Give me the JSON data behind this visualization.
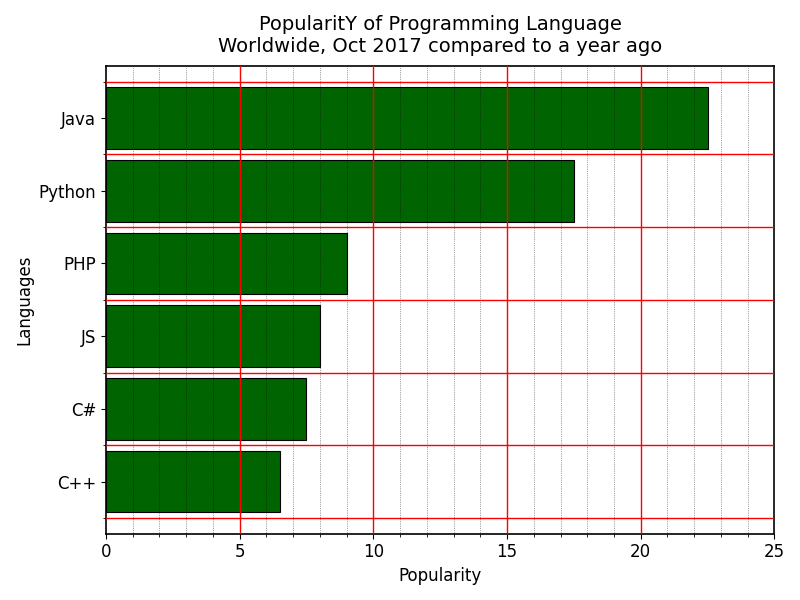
{
  "title": "PopularitY of Programming Language\nWorldwide, Oct 2017 compared to a year ago",
  "xlabel": "Popularity",
  "ylabel": "Languages",
  "languages": [
    "Java",
    "Python",
    "PHP",
    "JS",
    "C#",
    "C++"
  ],
  "values": [
    22.5,
    17.5,
    9.0,
    8.0,
    7.5,
    6.5
  ],
  "bar_color": "#006400",
  "bar_edgecolor": "black",
  "xlim": [
    0,
    25
  ],
  "xticks": [
    0,
    5,
    10,
    15,
    20,
    25
  ],
  "grid_color_major": "red",
  "grid_color_minor": "black",
  "background_color": "white",
  "title_fontsize": 14,
  "label_fontsize": 12,
  "tick_fontsize": 12,
  "figsize": [
    8.0,
    6.0
  ],
  "dpi": 100
}
